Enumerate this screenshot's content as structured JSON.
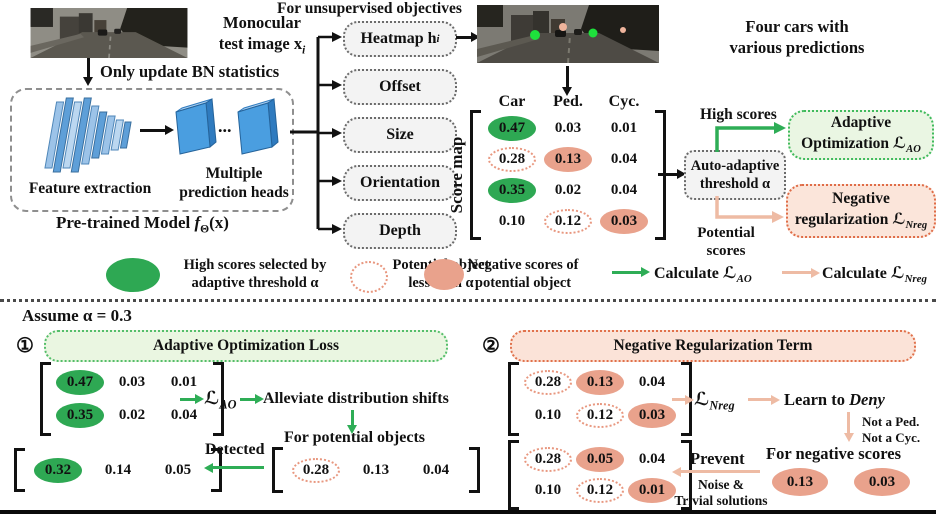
{
  "colors": {
    "high_score": "#2ea853",
    "negative_score": "#e9a28c",
    "potential_outline": "#e8977f",
    "green_arrow": "#2ead56",
    "pink_arrow": "#eebba4",
    "ao_box_bg": "#eaf6e3",
    "ao_box_border": "#3fba5c",
    "nreg_box_bg": "#fbe5da",
    "nreg_box_border": "#df6c47"
  },
  "top": {
    "monocular": {
      "line1": "Monocular",
      "line2_pre": "test image x",
      "line2_sub": "i"
    },
    "bn_label": "Only update BN statistics",
    "feature_label": "Feature extraction",
    "heads_label": {
      "line1": "Multiple",
      "line2": "prediction heads"
    },
    "dots": "...",
    "pretrained": {
      "pre": "Pre-trained Model ",
      "f": "f",
      "sub": "Θ",
      "post": "(x)"
    }
  },
  "objectives": {
    "heading": "For unsupervised objectives",
    "boxes": [
      {
        "pre": "Heatmap h",
        "sub": "i"
      },
      {
        "pre": "Offset"
      },
      {
        "pre": "Size"
      },
      {
        "pre": "Orientation"
      },
      {
        "pre": "Depth"
      }
    ]
  },
  "pred": {
    "caption": {
      "line1": "Four cars with",
      "line2": "various predictions"
    }
  },
  "score": {
    "title": "Score map",
    "headers": [
      "Car",
      "Ped.",
      "Cyc."
    ],
    "rows": [
      [
        {
          "v": "0.47",
          "s": "h"
        },
        {
          "v": "0.03"
        },
        {
          "v": "0.01"
        }
      ],
      [
        {
          "v": "0.28",
          "s": "p"
        },
        {
          "v": "0.13",
          "s": "n"
        },
        {
          "v": "0.04"
        }
      ],
      [
        {
          "v": "0.35",
          "s": "h"
        },
        {
          "v": "0.02"
        },
        {
          "v": "0.04"
        }
      ],
      [
        {
          "v": "0.10"
        },
        {
          "v": "0.12",
          "s": "p"
        },
        {
          "v": "0.03",
          "s": "n"
        }
      ]
    ]
  },
  "flow": {
    "threshold": {
      "line1": "Auto-adaptive",
      "line2": "threshold α"
    },
    "high_scores": "High scores",
    "potential": {
      "line1": "Potential",
      "line2": "scores"
    },
    "ao_box": {
      "line1": "Adaptive",
      "line2_pre": "Optimization ",
      "scr": "ℒ",
      "sub": "AO"
    },
    "nreg_box": {
      "line1": "Negative",
      "line2_pre": "regularization ",
      "scr": "ℒ",
      "sub": "Nreg"
    }
  },
  "legend": {
    "items": [
      {
        "line1": "High scores selected by",
        "line2": "adaptive threshold α"
      },
      {
        "line1": "Potential object",
        "line2": "less than α"
      },
      {
        "line1": "Negative scores of",
        "line2": "potential object"
      }
    ],
    "calc_ao": {
      "label": "Calculate ",
      "scr": "ℒ",
      "sub": "AO"
    },
    "calc_nreg": {
      "label": "Calculate ",
      "scr": "ℒ",
      "sub": "Nreg"
    }
  },
  "assume": "Assume α = 0.3",
  "s1": {
    "num": "①",
    "title": "Adaptive Optimization Loss",
    "matrixA": [
      [
        {
          "v": "0.47",
          "s": "h"
        },
        {
          "v": "0.03"
        },
        {
          "v": "0.01"
        }
      ],
      [
        {
          "v": "0.35",
          "s": "h"
        },
        {
          "v": "0.02"
        },
        {
          "v": "0.04"
        }
      ]
    ],
    "loss": {
      "scr": "ℒ",
      "sub": "AO"
    },
    "alleviate": "Alleviate distribution shifts",
    "for_potential": "For potential objects",
    "detected": "Detected",
    "matrixB": [
      [
        {
          "v": "0.32",
          "s": "h"
        },
        {
          "v": "0.14"
        },
        {
          "v": "0.05"
        }
      ]
    ],
    "matrixC": [
      [
        {
          "v": "0.28",
          "s": "p"
        },
        {
          "v": "0.13"
        },
        {
          "v": "0.04"
        }
      ]
    ]
  },
  "s2": {
    "num": "②",
    "title": "Negative Regularization Term",
    "matrixD": [
      [
        {
          "v": "0.28",
          "s": "p"
        },
        {
          "v": "0.13",
          "s": "n"
        },
        {
          "v": "0.04"
        }
      ],
      [
        {
          "v": "0.10"
        },
        {
          "v": "0.12",
          "s": "p"
        },
        {
          "v": "0.03",
          "s": "n"
        }
      ]
    ],
    "loss": {
      "scr": "ℒ",
      "sub": "Nreg"
    },
    "learn_pre": "Learn to ",
    "learn_em": "Deny",
    "not1": "Not a Ped.",
    "not2": "Not a Cyc.",
    "for_negative": "For negative scores",
    "neg1": "0.13",
    "neg2": "0.03",
    "prevent": "Prevent",
    "noise1": "Noise &",
    "noise2": "Trivial solutions",
    "matrixE": [
      [
        {
          "v": "0.28",
          "s": "p"
        },
        {
          "v": "0.05",
          "s": "n"
        },
        {
          "v": "0.04"
        }
      ],
      [
        {
          "v": "0.10"
        },
        {
          "v": "0.12",
          "s": "p"
        },
        {
          "v": "0.01",
          "s": "n"
        }
      ]
    ]
  }
}
